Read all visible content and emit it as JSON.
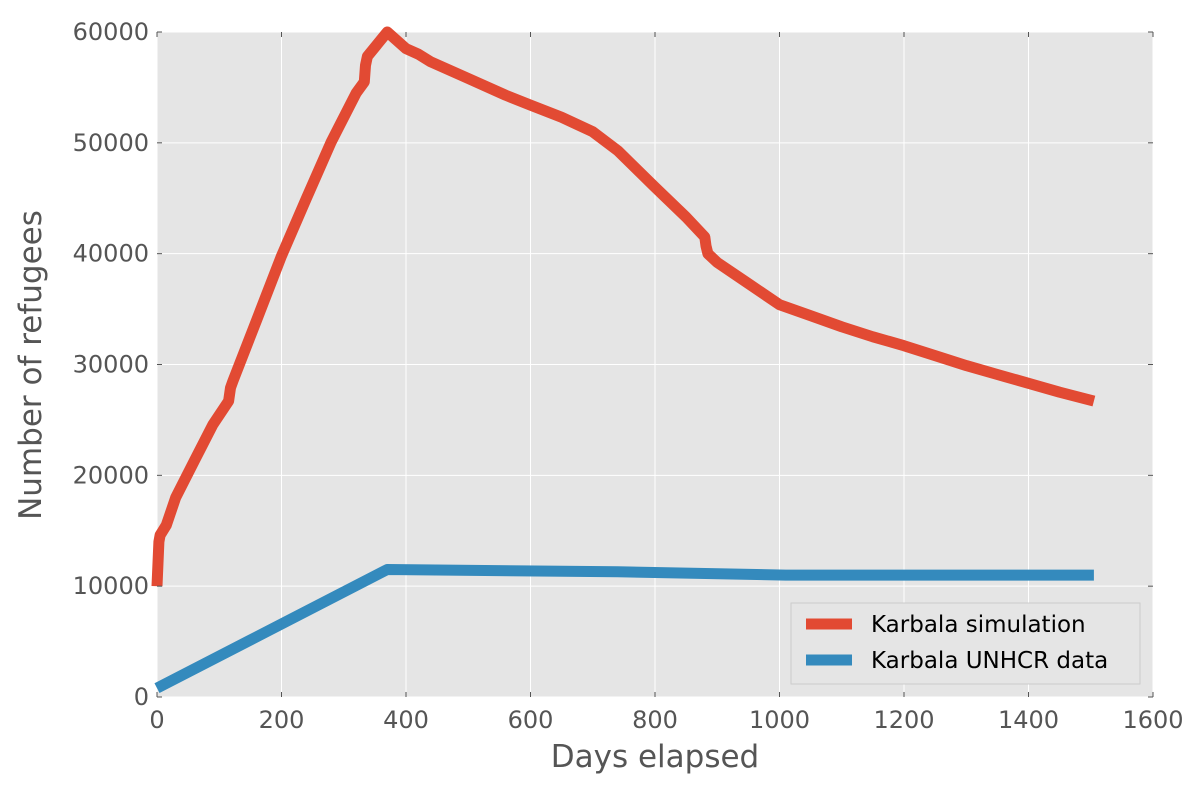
{
  "chart_data": {
    "type": "line",
    "title": "",
    "xlabel": "Days elapsed",
    "ylabel": "Number of refugees",
    "xlim": [
      0,
      1600
    ],
    "ylim": [
      0,
      60000
    ],
    "xticks": [
      0,
      200,
      400,
      600,
      800,
      1000,
      1200,
      1400,
      1600
    ],
    "yticks": [
      0,
      10000,
      20000,
      30000,
      40000,
      50000,
      60000
    ],
    "xtick_labels": [
      "0",
      "200",
      "400",
      "600",
      "800",
      "1000",
      "1200",
      "1400",
      "1600"
    ],
    "ytick_labels": [
      "0",
      "10000",
      "20000",
      "30000",
      "40000",
      "50000",
      "60000"
    ],
    "grid": true,
    "legend_position": "bottom-right",
    "series": [
      {
        "name": "Karbala simulation",
        "color": "#e24a33",
        "x": [
          0,
          3,
          5,
          15,
          30,
          60,
          90,
          115,
          118,
          122,
          160,
          200,
          240,
          280,
          320,
          333,
          335,
          338,
          370,
          400,
          420,
          440,
          500,
          560,
          600,
          650,
          700,
          740,
          800,
          850,
          880,
          882,
          885,
          900,
          950,
          1000,
          1050,
          1100,
          1150,
          1200,
          1250,
          1300,
          1350,
          1400,
          1450,
          1505
        ],
        "y": [
          10000,
          14000,
          14600,
          15500,
          18000,
          21300,
          24600,
          26700,
          27900,
          28500,
          34000,
          39800,
          45000,
          50100,
          54500,
          55500,
          57000,
          57800,
          60000,
          58500,
          58000,
          57300,
          55800,
          54300,
          53400,
          52300,
          51000,
          49300,
          46000,
          43300,
          41500,
          40700,
          40000,
          39200,
          37300,
          35400,
          34400,
          33400,
          32500,
          31700,
          30800,
          29900,
          29100,
          28300,
          27500,
          26700
        ]
      },
      {
        "name": "Karbala UNHCR data",
        "color": "#348abd",
        "x": [
          0,
          370,
          740,
          1010,
          1505
        ],
        "y": [
          800,
          11500,
          11300,
          11000,
          11000
        ]
      }
    ]
  }
}
